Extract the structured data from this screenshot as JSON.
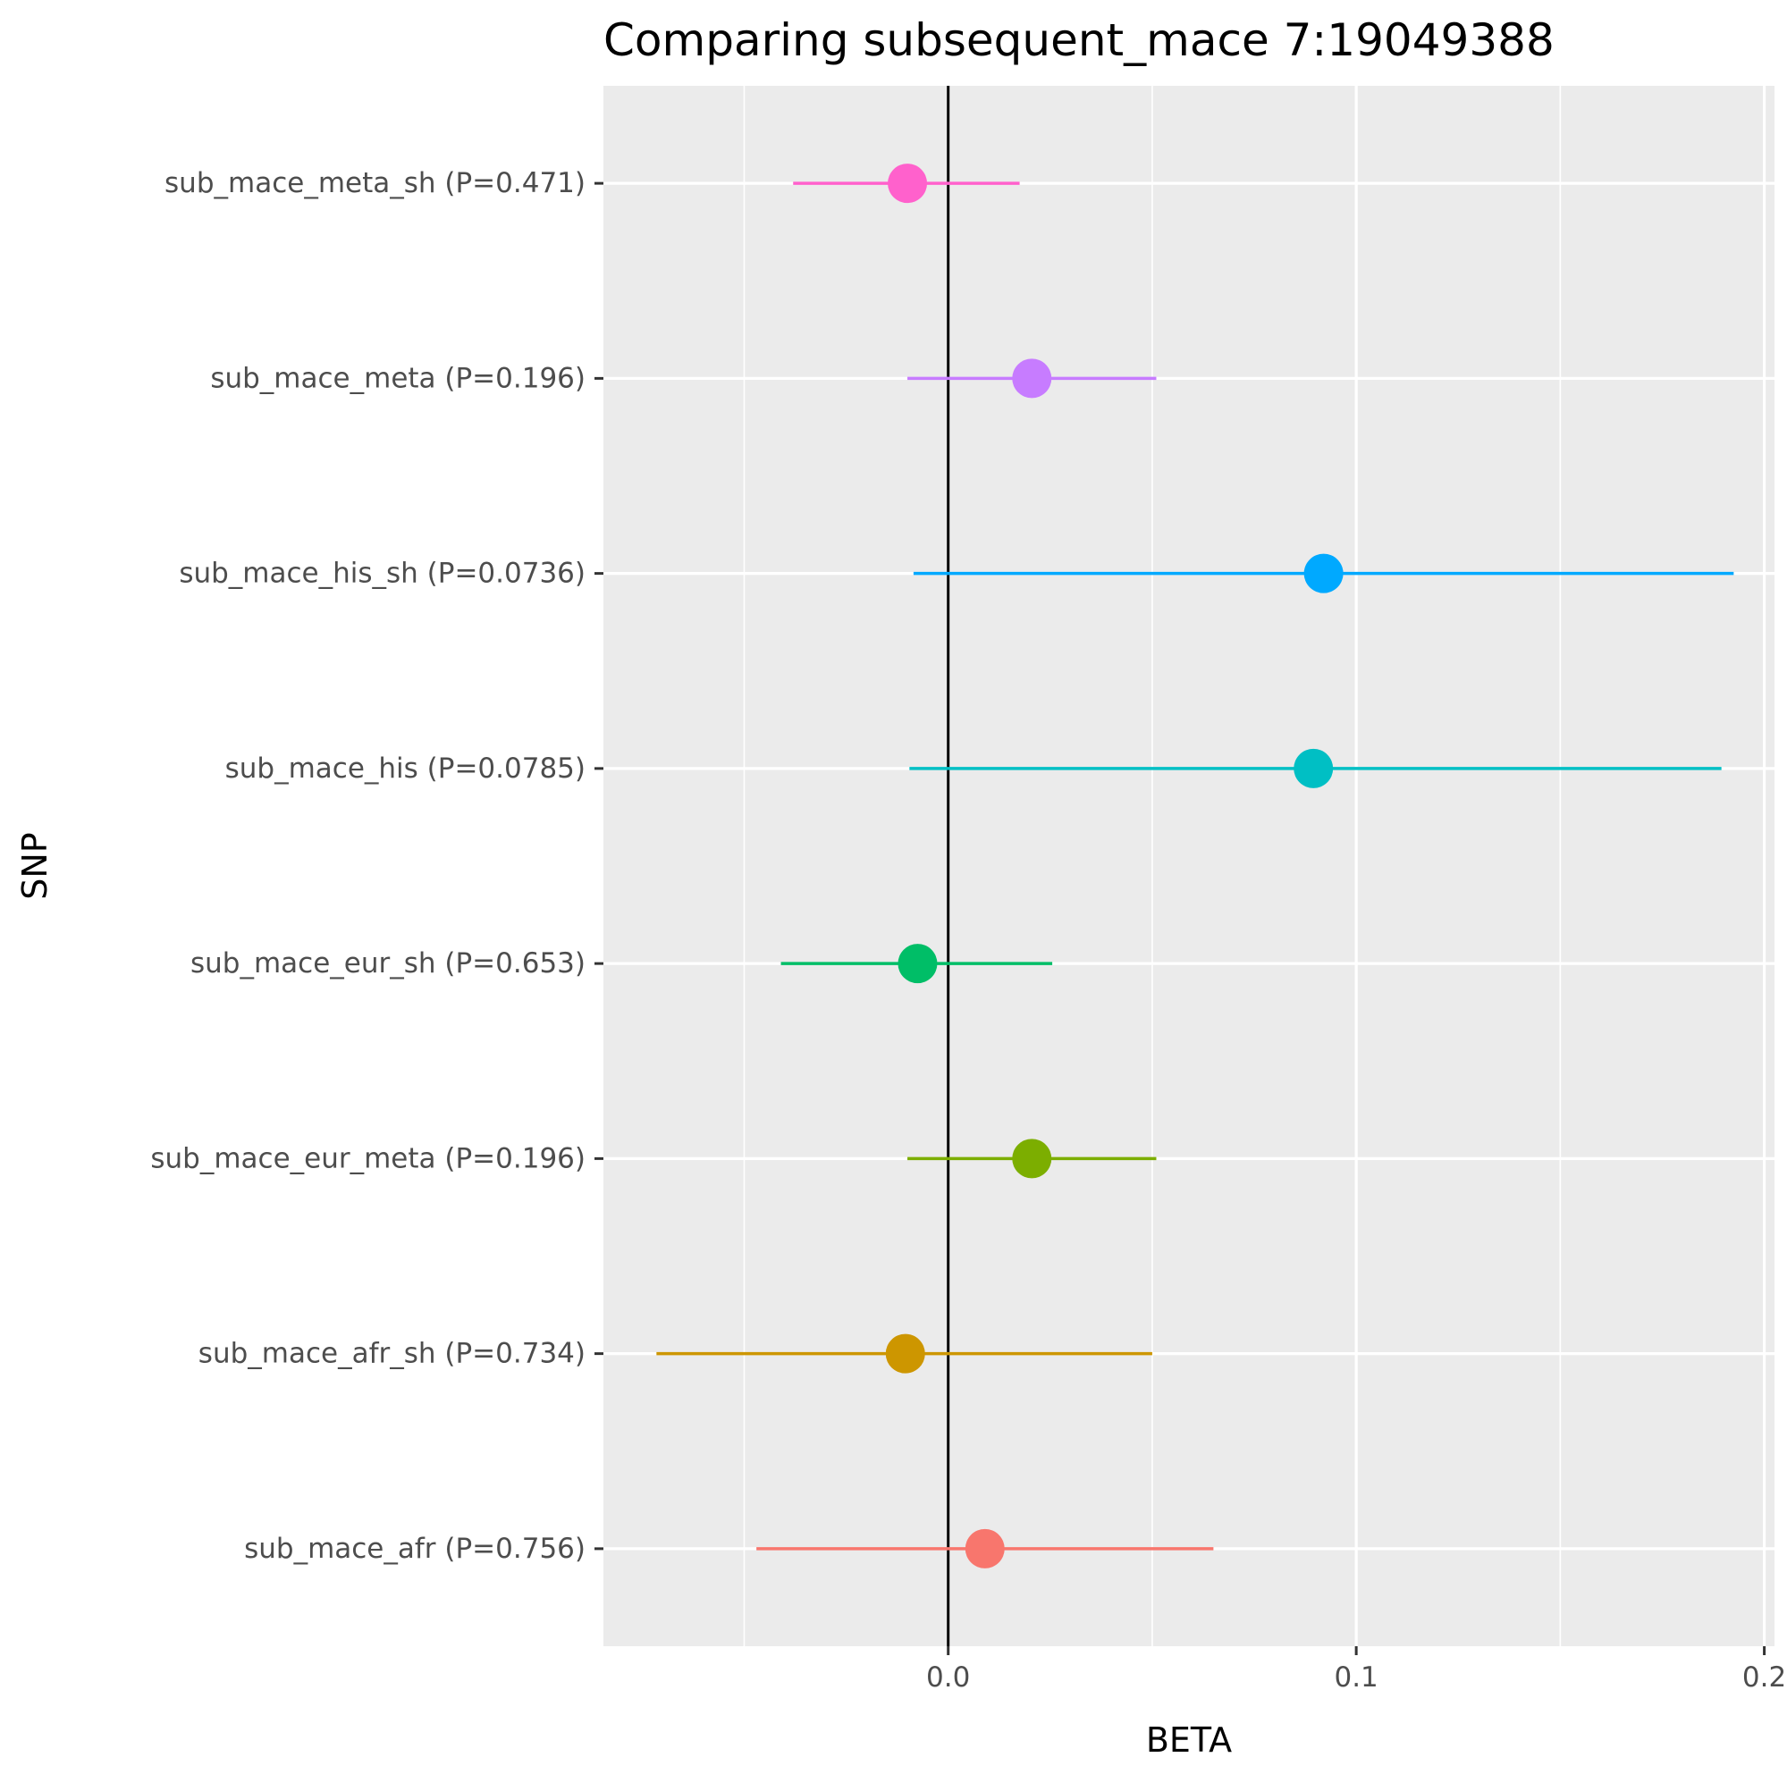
{
  "chart_data": {
    "type": "scatter",
    "title": "Comparing subsequent_mace 7:19049388",
    "xlabel": "BETA",
    "ylabel": "SNP",
    "xlim": [
      -0.0845,
      0.2025
    ],
    "x_ticks": [
      "0.0",
      "0.1",
      "0.2"
    ],
    "x_tick_values": [
      0.0,
      0.1,
      0.2
    ],
    "reference_line": 0.0,
    "grid": true,
    "legend": "none",
    "categories": [
      "sub_mace_meta_sh (P=0.471)",
      "sub_mace_meta (P=0.196)",
      "sub_mace_his_sh (P=0.0736)",
      "sub_mace_his (P=0.0785)",
      "sub_mace_eur_sh (P=0.653)",
      "sub_mace_eur_meta (P=0.196)",
      "sub_mace_afr_sh (P=0.734)",
      "sub_mace_afr (P=0.756)"
    ],
    "points": [
      {
        "label": "sub_mace_meta_sh (P=0.471)",
        "beta": -0.01,
        "lower": -0.038,
        "upper": 0.0175,
        "color": "#FF61CC"
      },
      {
        "label": "sub_mace_meta (P=0.196)",
        "beta": 0.0205,
        "lower": -0.01,
        "upper": 0.051,
        "color": "#C77CFF"
      },
      {
        "label": "sub_mace_his_sh (P=0.0736)",
        "beta": 0.092,
        "lower": -0.0085,
        "upper": 0.1925,
        "color": "#00A9FF"
      },
      {
        "label": "sub_mace_his (P=0.0785)",
        "beta": 0.0895,
        "lower": -0.0095,
        "upper": 0.1895,
        "color": "#00BFC4"
      },
      {
        "label": "sub_mace_eur_sh (P=0.653)",
        "beta": -0.0075,
        "lower": -0.041,
        "upper": 0.0255,
        "color": "#00BE67"
      },
      {
        "label": "sub_mace_eur_meta (P=0.196)",
        "beta": 0.0205,
        "lower": -0.01,
        "upper": 0.051,
        "color": "#7CAE00"
      },
      {
        "label": "sub_mace_afr_sh (P=0.734)",
        "beta": -0.0105,
        "lower": -0.0715,
        "upper": 0.05,
        "color": "#CD9600"
      },
      {
        "label": "sub_mace_afr (P=0.756)",
        "beta": 0.009,
        "lower": -0.047,
        "upper": 0.065,
        "color": "#F8766D"
      }
    ]
  }
}
